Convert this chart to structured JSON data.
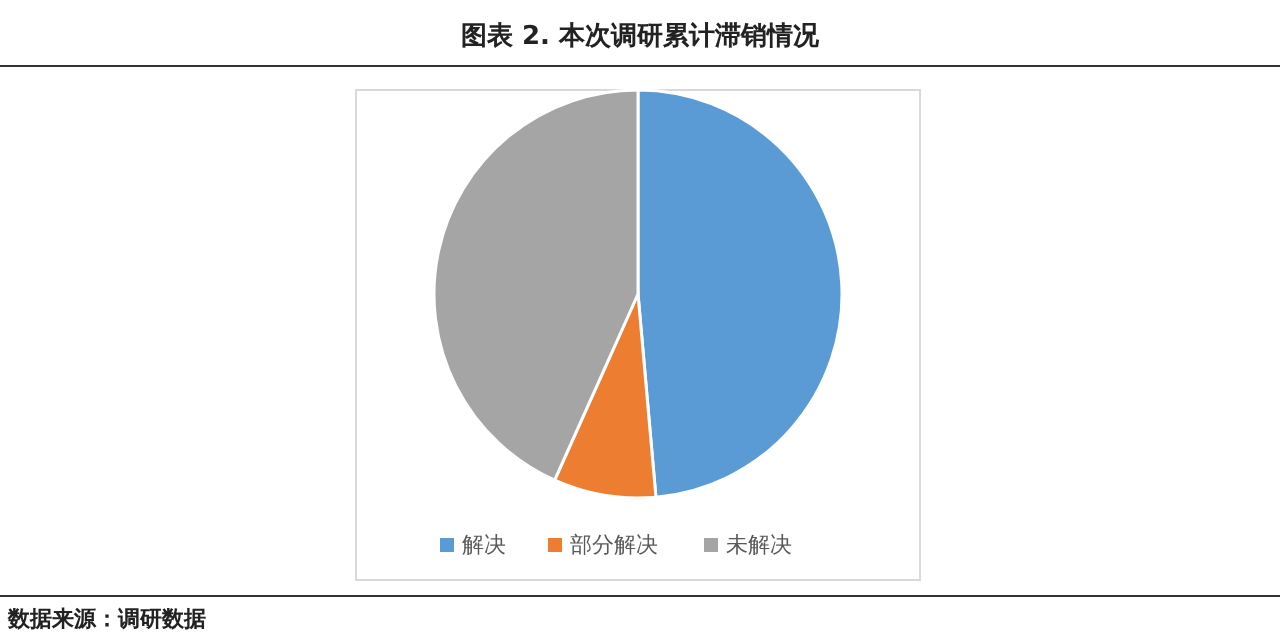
{
  "chart_data": {
    "type": "pie",
    "title": "图表 2.   本次调研累计滞销情况",
    "categories": [
      "解决",
      "部分解决",
      "未解决"
    ],
    "values": [
      48.6,
      8.1,
      43.3
    ],
    "colors": [
      "#5b9bd5",
      "#ed7d31",
      "#a5a5a5"
    ],
    "legend": "bottom",
    "annotations": [
      "数据来源：调研数据"
    ]
  }
}
